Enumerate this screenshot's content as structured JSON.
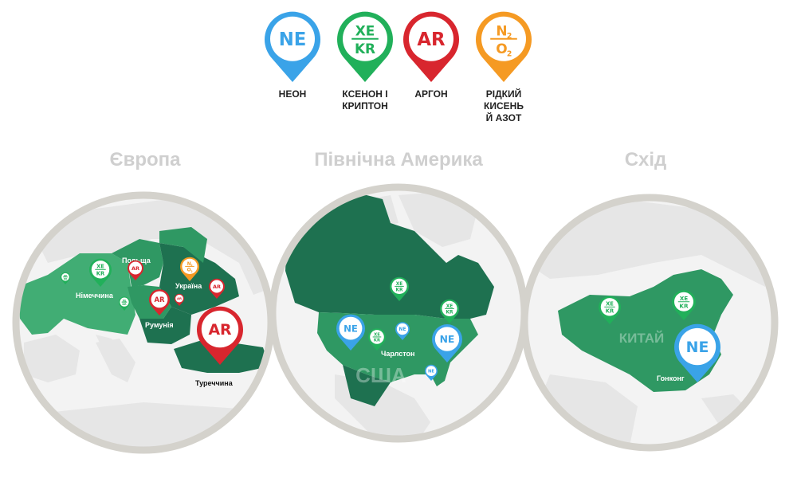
{
  "colors": {
    "neon": "#3aa3e8",
    "xenon": "#21b05a",
    "argon": "#d8262e",
    "oxygen": "#f59a23",
    "circle_border": "#d4d2cc",
    "land": "#e7e7e7",
    "sea": "#f4f4f4",
    "green_dark": "#1e7150",
    "green_mid": "#2f9863",
    "green_light": "#41ad74",
    "title_gray": "#cfcfcf"
  },
  "legend": [
    {
      "key": "neon",
      "icon": "NE",
      "label_lines": [
        "НЕОН"
      ]
    },
    {
      "key": "xenon",
      "icon_top": "XE",
      "icon_bottom": "KR",
      "label_lines": [
        "КСЕНОН І",
        "КРИПТОН"
      ]
    },
    {
      "key": "argon",
      "icon": "AR",
      "label_lines": [
        "АРГОН"
      ]
    },
    {
      "key": "oxygen",
      "icon_top": "N",
      "icon_top_sub": "2",
      "icon_bottom": "O",
      "icon_bottom_sub": "2",
      "label_lines": [
        "РІДКИЙ",
        "КИСЕНЬ",
        "Й АЗОТ"
      ]
    }
  ],
  "regions": [
    {
      "title": "Європа",
      "labels": {
        "germany": "Німеччина",
        "poland": "Польща",
        "ukraine": "Україна",
        "romania": "Румунія",
        "turkey": "Туреччина"
      }
    },
    {
      "title": "Північна Америка",
      "labels": {
        "usa": "США",
        "charleston": "Чарлстон"
      }
    },
    {
      "title": "Схід",
      "labels": {
        "china": "КИТАЙ",
        "hongkong": "Гонконг"
      }
    }
  ],
  "pin_text": {
    "neon": "NE",
    "argon": "AR",
    "xe": "XE",
    "kr": "KR",
    "n": "N",
    "o": "O",
    "sub2": "2"
  }
}
